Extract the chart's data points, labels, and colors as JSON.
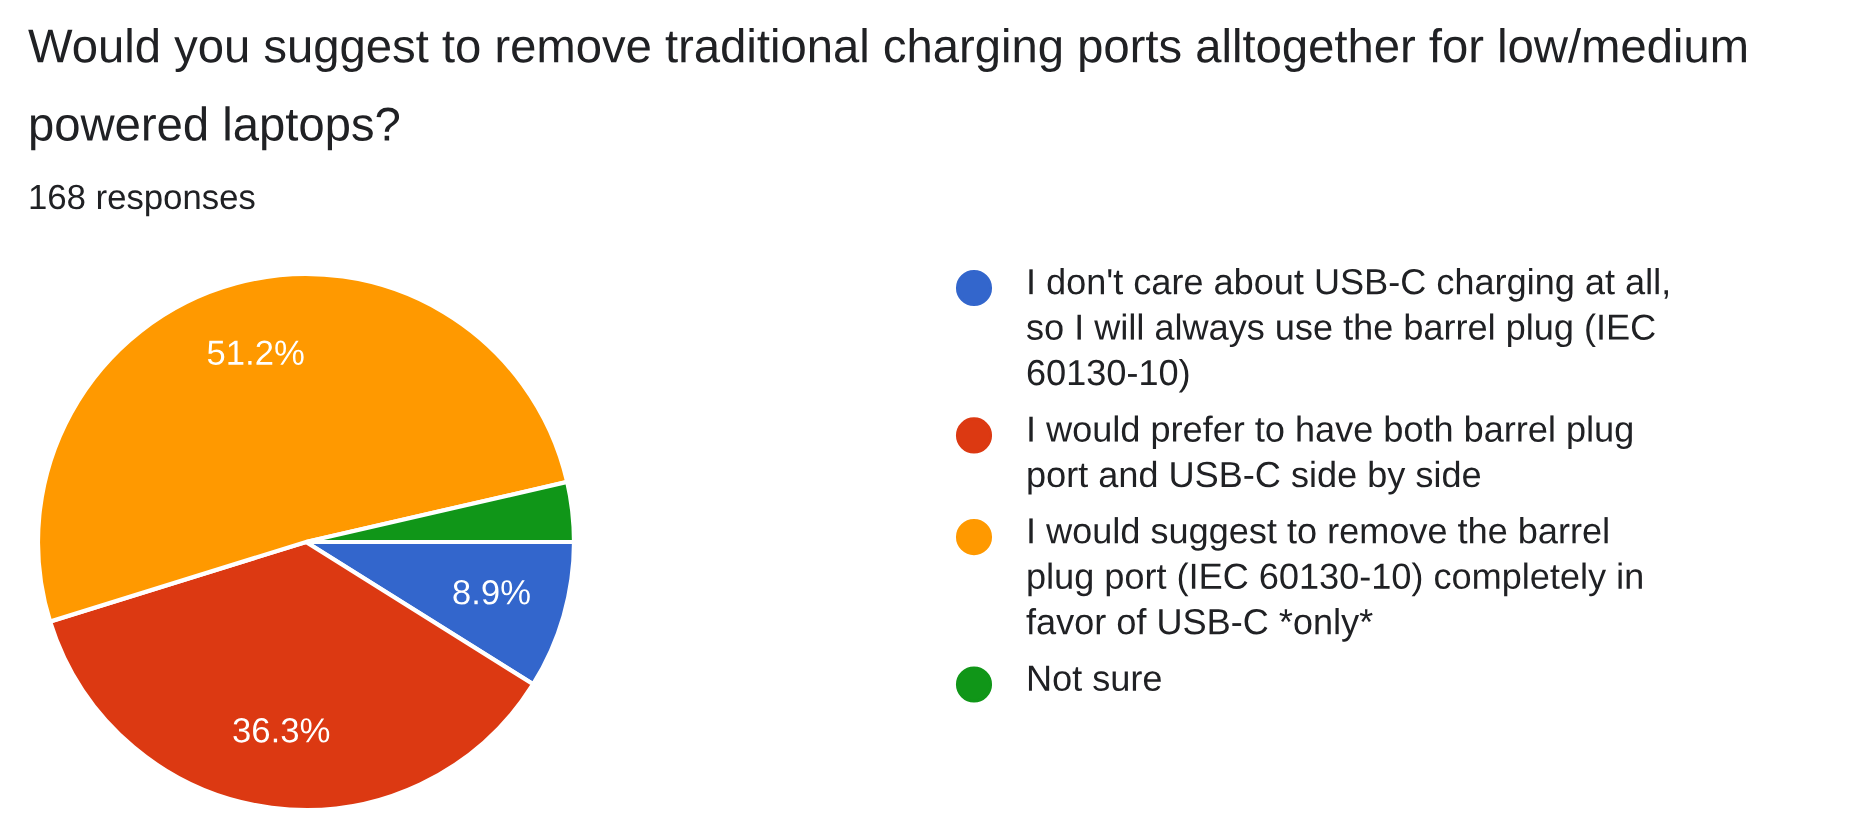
{
  "chart_data": {
    "type": "pie",
    "title": "Would you suggest to remove traditional charging ports alltogether for low/medium powered laptops?",
    "subtitle": "168 responses",
    "categories": [
      "I don't care about USB-C charging at all, so I will always use the barrel plug (IEC 60130-10)",
      "I would prefer to have both barrel plug port and USB-C side by side",
      "I would suggest to remove the barrel plug port (IEC 60130-10) completely in favor of USB-C *only*",
      "Not sure"
    ],
    "values": [
      8.9,
      36.3,
      51.2,
      3.6
    ],
    "colors": [
      "#3366cc",
      "#dc3912",
      "#ff9900",
      "#109618"
    ],
    "value_labels": [
      "8.9%",
      "36.3%",
      "51.2%",
      null
    ],
    "legend": "right"
  }
}
